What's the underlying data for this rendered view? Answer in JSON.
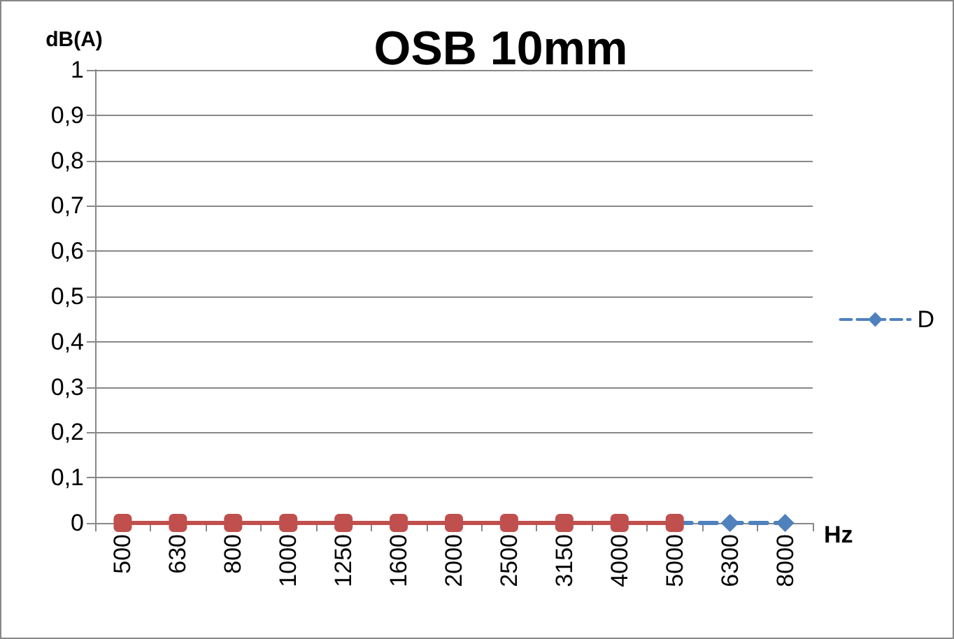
{
  "chart_data": {
    "type": "line",
    "title": "OSB 10mm",
    "ylabel": "dB(A)",
    "xlabel": "Hz",
    "categories": [
      "500",
      "630",
      "800",
      "1000",
      "1250",
      "1600",
      "2000",
      "2500",
      "3150",
      "4000",
      "5000",
      "6300",
      "8000"
    ],
    "series": [
      {
        "name": "D",
        "color": "#4f81bd",
        "marker": "diamond",
        "line_style": "dashed",
        "values": [
          null,
          null,
          null,
          null,
          null,
          null,
          null,
          null,
          null,
          null,
          0,
          0,
          0
        ]
      },
      {
        "color": "#c0504d",
        "marker": "square",
        "line_style": "solid",
        "values": [
          0,
          0,
          0,
          0,
          0,
          0,
          0,
          0,
          0,
          0,
          0,
          null,
          null
        ]
      }
    ],
    "ylim": [
      0,
      1
    ],
    "yticks": [
      0,
      {
        "value": 0.1,
        "label": "0,1"
      },
      {
        "value": 0.2,
        "label": "0,2"
      },
      {
        "value": 0.3,
        "label": "0,3"
      },
      {
        "value": 0.4,
        "label": "0,4"
      },
      {
        "value": 0.5,
        "label": "0,5"
      },
      {
        "value": 0.6,
        "label": "0,6"
      },
      {
        "value": 0.7,
        "label": "0,7"
      },
      {
        "value": 0.8,
        "label": "0,8"
      },
      {
        "value": 0.9,
        "label": "0,9"
      },
      1
    ],
    "grid": "y",
    "legend": "right"
  }
}
